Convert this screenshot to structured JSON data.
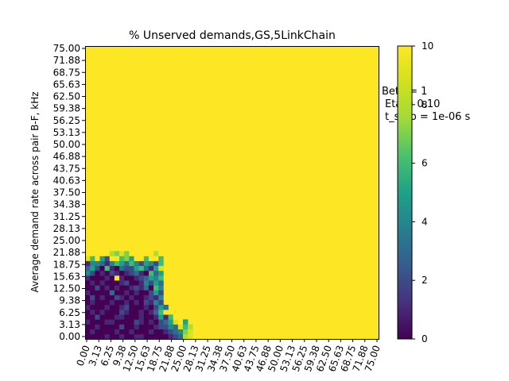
{
  "chart_data": {
    "type": "heatmap",
    "title": "% Unserved demands,GS,5LinkChain",
    "xlabel": "",
    "ylabel": "Average demand rate across pair B-F, kHz",
    "x_ticks": [
      "0.00",
      "3.13",
      "6.25",
      "9.38",
      "12.50",
      "15.63",
      "18.75",
      "21.88",
      "25.00",
      "28.13",
      "31.25",
      "34.38",
      "37.50",
      "40.63",
      "43.75",
      "46.88",
      "50.00",
      "53.13",
      "56.25",
      "59.38",
      "62.50",
      "65.63",
      "68.75",
      "71.88",
      "75.00"
    ],
    "y_ticks": [
      "0.00",
      "3.13",
      "6.25",
      "9.38",
      "12.50",
      "15.63",
      "18.75",
      "21.88",
      "25.00",
      "28.13",
      "31.25",
      "34.38",
      "37.50",
      "40.63",
      "43.75",
      "46.88",
      "50.00",
      "53.13",
      "56.25",
      "59.38",
      "62.50",
      "65.63",
      "68.75",
      "71.88",
      "75.00"
    ],
    "xlim": [
      0,
      75
    ],
    "ylim": [
      0,
      75
    ],
    "grid_size": 60,
    "colormap": "viridis",
    "colorbar": {
      "min": 0,
      "max": 10,
      "ticks": [
        "0",
        "2",
        "4",
        "6",
        "8",
        "10"
      ]
    },
    "saturated_value": 10,
    "low_region_rows": [
      [
        0,
        0,
        0,
        0,
        1,
        0,
        0,
        1,
        0,
        0,
        1,
        1,
        0,
        0,
        0,
        0,
        0,
        1,
        2,
        3,
        8,
        9
      ],
      [
        0,
        1,
        0,
        0,
        0,
        0,
        1,
        0,
        0,
        1,
        0,
        0,
        0,
        1,
        0,
        0,
        1,
        2,
        3,
        4,
        7,
        9
      ],
      [
        0,
        0,
        1,
        0,
        0,
        0,
        0,
        2,
        0,
        0,
        1,
        0,
        0,
        0,
        1,
        2,
        2,
        4,
        3,
        9,
        6,
        8
      ],
      [
        1,
        0,
        0,
        0,
        1,
        1,
        0,
        0,
        0,
        0,
        2,
        1,
        0,
        1,
        0,
        2,
        3,
        5,
        9,
        10,
        5
      ],
      [
        0,
        0,
        2,
        0,
        0,
        0,
        1,
        1,
        0,
        0,
        0,
        1,
        0,
        0,
        1,
        5,
        1,
        6,
        10
      ],
      [
        0,
        1,
        0,
        1,
        0,
        0,
        0,
        2,
        1,
        0,
        0,
        1,
        0,
        1,
        3,
        6,
        10
      ],
      [
        1,
        0,
        0,
        0,
        1,
        0,
        0,
        1,
        2,
        0,
        0,
        0,
        1,
        0,
        2,
        5,
        3
      ],
      [
        0,
        1,
        0,
        0,
        0,
        1,
        0,
        0,
        1,
        0,
        1,
        0,
        2,
        1,
        4,
        2
      ],
      [
        0,
        2,
        0,
        1,
        0,
        0,
        2,
        1,
        0,
        1,
        0,
        0,
        1,
        2,
        1,
        4
      ],
      [
        1,
        0,
        0,
        0,
        0,
        3,
        0,
        0,
        1,
        0,
        1,
        0,
        0,
        2,
        5,
        2
      ],
      [
        0,
        0,
        2,
        0,
        1,
        0,
        1,
        0,
        0,
        1,
        2,
        1,
        3,
        0,
        6,
        4
      ],
      [
        0,
        1,
        0,
        1,
        0,
        0,
        0,
        1,
        2,
        0,
        0,
        1,
        4,
        2,
        5,
        3
      ],
      [
        1,
        0,
        0,
        0,
        1,
        0,
        10,
        1,
        0,
        0,
        1,
        2,
        3,
        5,
        4,
        6
      ],
      [
        4,
        2,
        0,
        1,
        0,
        2,
        1,
        0,
        1,
        2,
        3,
        1,
        0,
        6,
        3,
        5
      ],
      [
        3,
        5,
        2,
        0,
        6,
        1,
        0,
        3,
        2,
        2,
        5,
        6,
        3,
        1,
        5,
        9
      ],
      [
        1,
        4,
        4,
        3,
        1,
        4,
        6,
        5,
        3,
        6,
        4,
        2,
        5,
        4,
        2,
        6
      ],
      [
        9,
        6,
        10,
        5,
        2,
        10,
        10,
        6,
        7,
        5,
        10,
        10,
        6,
        10,
        10,
        6
      ],
      [
        10,
        10,
        10,
        10,
        10,
        8,
        7,
        9,
        7,
        10,
        10,
        10,
        10,
        10,
        8,
        10
      ]
    ],
    "annotations": [
      "Beta = 1",
      "Eta = 0.10",
      "t_step = 1e-06 s"
    ]
  }
}
